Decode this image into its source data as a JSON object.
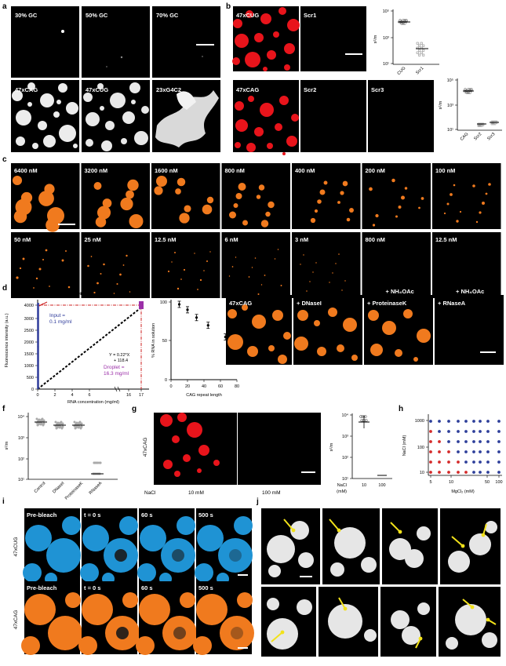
{
  "panels": {
    "a": {
      "label": "a",
      "tiles": [
        "30% GC",
        "50% GC",
        "70% GC",
        "47xCAG",
        "47xCUG",
        "23xG4C2"
      ]
    },
    "b": {
      "label": "b",
      "tiles": [
        "47xCUG",
        "Scr1",
        "47xCAG",
        "Scr2",
        "Scr3"
      ],
      "ylabel": "s²/m",
      "plot1": {
        "categories": [
          "CUG",
          "Scr1"
        ],
        "yticks": [
          "10¹",
          "10³",
          "10⁵"
        ]
      },
      "plot2": {
        "categories": [
          "CAG",
          "Scr2",
          "Scr3"
        ],
        "yticks": [
          "10¹",
          "10³",
          "10⁵"
        ]
      }
    },
    "c": {
      "label": "c",
      "tiles": [
        "6400 nM",
        "3200 nM",
        "1600 nM",
        "800 nM",
        "400 nM",
        "200 nM",
        "100 nM",
        "50 nM",
        "25 nM",
        "12.5 nM",
        "6 nM",
        "3 nM",
        "800 nM",
        "12.5 nM"
      ],
      "nh4oac": "+ NH₄OAc"
    },
    "d": {
      "label": "d",
      "title": "Droplet Intensity",
      "ylabel": "Fluorescence intensity (a.u.)",
      "xlabel": "RNA concentration (mg/ml)",
      "input": "Input =",
      "input_value": "0.1 mg/ml",
      "droplet": "Droplet =",
      "droplet_value": "16.3 mg/ml",
      "equation1": "Y = 0.22*X",
      "equation2": "+ 118.4",
      "yticks": [
        "0",
        "500",
        "1000",
        "1500",
        "2000",
        "2500",
        "3000",
        "4000"
      ],
      "xticks": [
        "0",
        "2",
        "4",
        "6",
        "16",
        "17"
      ],
      "plot2": {
        "ylabel": "% RNA in solution",
        "xlabel": "CAG repeat length",
        "yticks": [
          "0",
          "50",
          "100"
        ],
        "xticks": [
          "0",
          "20",
          "40",
          "60",
          "80"
        ]
      }
    },
    "e": {
      "label": "e",
      "tiles": [
        "47xCAG",
        "+ DNaseI",
        "+ ProteinaseK",
        "+ RNaseA"
      ]
    },
    "f": {
      "label": "f",
      "ylabel": "s²/m",
      "categories": [
        "Control",
        "DNaseI",
        "ProteinaseK",
        "RNaseA"
      ],
      "yticks": [
        "10¹",
        "10²",
        "10³",
        "10⁴"
      ]
    },
    "g": {
      "label": "g",
      "side": "47xCAG",
      "nacl": "NaCl",
      "conc": [
        "10 mM",
        "100 mM"
      ],
      "ylabel": "s²/m",
      "yticks": [
        "10¹",
        "10²",
        "10³",
        "10⁴"
      ],
      "xcats": [
        "10",
        "100"
      ],
      "xlabel1": "NaCl",
      "xlabel2": "(mM)"
    },
    "h": {
      "label": "h",
      "ylabel": "NaCl (mM)",
      "xlabel": "MgCl₂ (mM)",
      "yticks": [
        "10",
        "100",
        "1000"
      ],
      "xticks": [
        "5",
        "10",
        "50",
        "100"
      ]
    },
    "i": {
      "label": "i",
      "rows": [
        "47xCUG",
        "47xCAG"
      ],
      "times": [
        "Pre-bleach",
        "t = 0 s",
        "60 s",
        "500 s"
      ]
    },
    "j": {
      "label": "j"
    }
  },
  "colors": {
    "red": "#e8141b",
    "orange": "#f07a1e",
    "blue": "#1f93d4",
    "gray": "#e6e6e6",
    "navy": "#2f3c9b",
    "purple": "#9b2fa8"
  },
  "chart_data": [
    {
      "type": "scatter",
      "panel": "d",
      "title": "Droplet Intensity",
      "xlabel": "RNA concentration (mg/ml)",
      "ylabel": "Fluorescence intensity (a.u.)",
      "x": [
        0,
        0.1,
        16.3
      ],
      "y": [
        118,
        140,
        3800
      ],
      "ylim": [
        0,
        4000
      ]
    },
    {
      "type": "scatter",
      "panel": "d2",
      "xlabel": "CAG repeat length",
      "ylabel": "% RNA in solution",
      "x": [
        10,
        20,
        31,
        45,
        66
      ],
      "y": [
        97,
        90,
        80,
        70,
        55
      ],
      "xlim": [
        0,
        80
      ],
      "ylim": [
        0,
        100
      ]
    }
  ]
}
